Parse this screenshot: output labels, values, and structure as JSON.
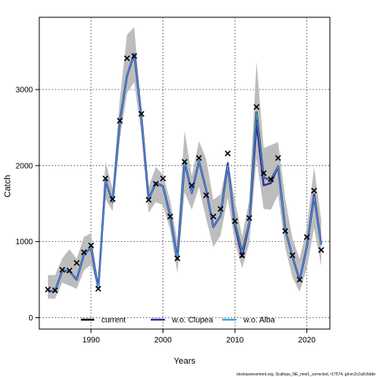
{
  "chart_data": {
    "type": "line",
    "xlabel": "Years",
    "ylabel": "Catch",
    "xlim": [
      1982.8,
      2023.2
    ],
    "ylim": [
      -150,
      3950
    ],
    "x_ticks": [
      1990,
      2000,
      2010,
      2020
    ],
    "y_ticks": [
      0,
      1000,
      2000,
      3000
    ],
    "grid": true,
    "legend_position": "bottom-center",
    "x": [
      1984,
      1985,
      1986,
      1987,
      1988,
      1989,
      1990,
      1991,
      1992,
      1993,
      1994,
      1995,
      1996,
      1997,
      1998,
      1999,
      2000,
      2001,
      2002,
      2003,
      2004,
      2005,
      2006,
      2007,
      2008,
      2009,
      2010,
      2011,
      2012,
      2013,
      2014,
      2015,
      2016,
      2017,
      2018,
      2019,
      2020,
      2021,
      2022
    ],
    "observed": {
      "marker": "x",
      "values": [
        370,
        360,
        630,
        620,
        720,
        860,
        950,
        380,
        1830,
        1560,
        2590,
        3410,
        3440,
        2680,
        1550,
        1760,
        1830,
        1330,
        780,
        2050,
        1740,
        2100,
        1610,
        1330,
        1430,
        2160,
        1270,
        820,
        1310,
        2770,
        1900,
        1820,
        2100,
        1140,
        820,
        500,
        1060,
        1670,
        890
      ]
    },
    "band": {
      "color": "#bdbdbd",
      "lower": [
        250,
        250,
        460,
        420,
        380,
        620,
        700,
        380,
        1560,
        1400,
        2350,
        2950,
        3100,
        2400,
        1380,
        1520,
        1480,
        1150,
        590,
        1650,
        1420,
        1720,
        1300,
        930,
        1080,
        1580,
        990,
        650,
        980,
        2090,
        1430,
        1420,
        1620,
        920,
        530,
        340,
        650,
        1180,
        680
      ],
      "upper": [
        560,
        560,
        780,
        900,
        770,
        1060,
        1110,
        470,
        2050,
        1690,
        2880,
        3720,
        3820,
        2740,
        1720,
        1980,
        1880,
        1540,
        1010,
        2460,
        1860,
        2320,
        2090,
        1550,
        1620,
        2080,
        1540,
        1070,
        1550,
        3370,
        2230,
        2270,
        2310,
        1560,
        1040,
        770,
        1190,
        1980,
        1280
      ]
    },
    "series": [
      {
        "name": "current",
        "color": "#000000",
        "values": [
          350,
          350,
          620,
          610,
          500,
          830,
          920,
          380,
          1800,
          1520,
          2580,
          3180,
          3470,
          2650,
          1560,
          1770,
          1730,
          1340,
          770,
          2050,
          1640,
          2060,
          1680,
          1190,
          1340,
          2000,
          1240,
          860,
          1250,
          2700,
          1840,
          1810,
          1990,
          1160,
          800,
          490,
          930,
          1590,
          960
        ]
      },
      {
        "name": "w.o. Clupea",
        "color": "#3b2a9a",
        "values": [
          350,
          350,
          620,
          610,
          500,
          830,
          920,
          380,
          1800,
          1520,
          2580,
          3180,
          3470,
          2650,
          1560,
          1770,
          1730,
          1340,
          770,
          2050,
          1640,
          2060,
          1680,
          1190,
          1340,
          2030,
          1210,
          800,
          1240,
          2560,
          1740,
          1770,
          1990,
          1160,
          800,
          490,
          930,
          1620,
          960
        ]
      },
      {
        "name": "w.o. Alba",
        "color": "#3fa7e0",
        "values": [
          350,
          350,
          620,
          610,
          500,
          830,
          920,
          380,
          1800,
          1520,
          2580,
          3180,
          3470,
          2650,
          1560,
          1770,
          1730,
          1340,
          770,
          2050,
          1640,
          2060,
          1680,
          1190,
          1340,
          2000,
          1240,
          860,
          1250,
          2700,
          1840,
          1810,
          1990,
          1160,
          800,
          490,
          930,
          1590,
          960
        ]
      }
    ]
  },
  "footer": "stockassessment.org, Scallops_NE_new1_corrected, r17574, git:ec2c2a0c6dde"
}
